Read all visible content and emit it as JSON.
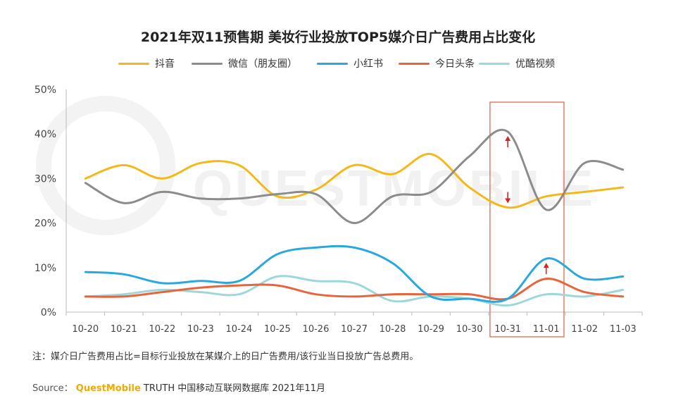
{
  "chart_data": {
    "type": "line",
    "title": "2021年双11预售期 美妆行业投放TOP5媒介日广告费用占比变化",
    "categories": [
      "10-20",
      "10-21",
      "10-22",
      "10-23",
      "10-24",
      "10-25",
      "10-26",
      "10-27",
      "10-28",
      "10-29",
      "10-30",
      "10-31",
      "11-01",
      "11-02",
      "11-03"
    ],
    "yticks": [
      "0%",
      "10%",
      "20%",
      "30%",
      "40%",
      "50%"
    ],
    "ylim": [
      0,
      50
    ],
    "series": [
      {
        "name": "抖音",
        "color": "#f4b919",
        "values": [
          30,
          33,
          30,
          33.5,
          33,
          26,
          27.5,
          33,
          31,
          35.5,
          28,
          23.5,
          26,
          27,
          28
        ]
      },
      {
        "name": "微信（朋友圈）",
        "color": "#8c8c8c",
        "values": [
          29,
          24.5,
          27,
          25.5,
          25.5,
          26.5,
          26.5,
          20,
          26,
          27,
          35,
          40.5,
          23,
          33.5,
          32
        ]
      },
      {
        "name": "小红书",
        "color": "#29a8e0",
        "values": [
          9,
          8.5,
          6.5,
          7,
          7,
          13,
          14.5,
          14.5,
          11,
          3.5,
          3,
          3,
          12,
          7.5,
          8
        ]
      },
      {
        "name": "今日头条",
        "color": "#e8643c",
        "values": [
          3.5,
          3.5,
          4.5,
          5.5,
          6,
          6,
          4,
          3.5,
          4,
          4,
          4,
          3,
          7.5,
          4.5,
          3.5
        ]
      },
      {
        "name": "优酷视频",
        "color": "#9dd8d8",
        "values": [
          3.5,
          4,
          5,
          4.5,
          4,
          8,
          7,
          6.5,
          2.5,
          3.5,
          3,
          1.5,
          4,
          3.5,
          5
        ]
      }
    ],
    "highlight": {
      "from": "10-31",
      "to": "11-01",
      "color": "#d9603b"
    },
    "annotations": [
      {
        "series": "微信（朋友圈）",
        "category": "10-31",
        "direction": "up"
      },
      {
        "series": "抖音",
        "category": "10-31",
        "direction": "down"
      },
      {
        "series": "小红书",
        "category": "11-01",
        "direction": "up"
      }
    ],
    "note": "注：媒介日广告费用占比=目标行业投放在某媒介上的日广告费用/该行业当日投放广告总费用。",
    "source_label": "Source：",
    "source_brand": "QuestMobile",
    "source_rest": "TRUTH 中国移动互联网数据库 2021年11月",
    "watermark": "QUESTMOBILE"
  }
}
